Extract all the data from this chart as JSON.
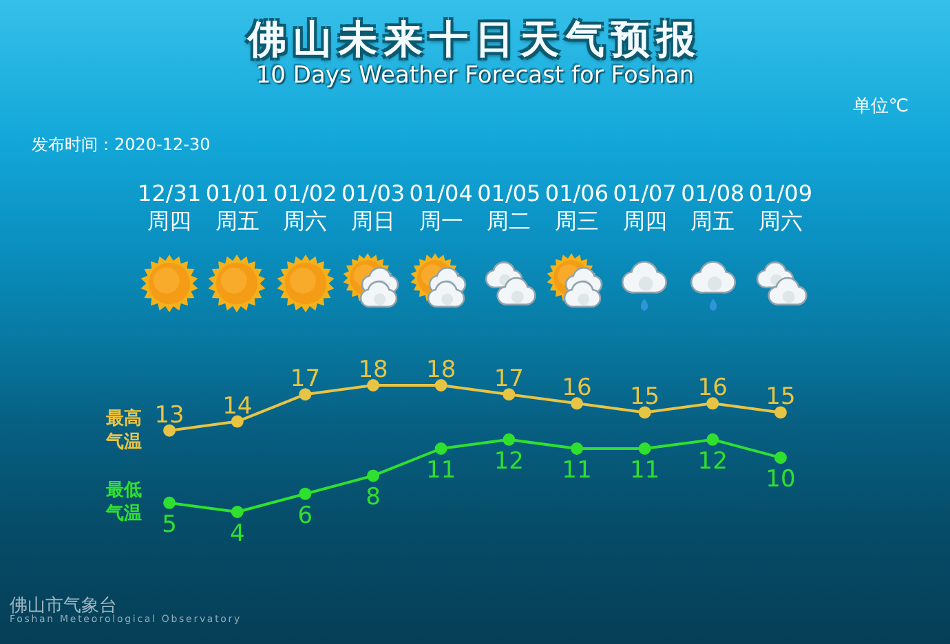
{
  "chart_data": {
    "type": "line",
    "title": "佛山未来十日天气预报",
    "subtitle": "10 Days Weather Forecast for Foshan",
    "annotations": [
      "单位℃",
      "发布时间：2020-12-30",
      "佛山市气象台",
      "Foshan Meteorological Observatory"
    ],
    "categories": [
      "12/31\n周四",
      "01/01\n周五",
      "01/02\n周六",
      "01/03\n周日",
      "01/04\n周一",
      "01/05\n周二",
      "01/06\n周三",
      "01/07\n周四",
      "01/08\n周五",
      "01/09\n周六"
    ],
    "series": [
      {
        "name": "最高气温",
        "color": "#e8c444",
        "values": [
          13,
          14,
          17,
          18,
          18,
          17,
          16,
          15,
          16,
          15
        ]
      },
      {
        "name": "最低气温",
        "color": "#2fe02f",
        "values": [
          5,
          4,
          6,
          8,
          11,
          12,
          11,
          11,
          12,
          10
        ]
      }
    ],
    "data_labels": true,
    "marker": "circle",
    "tick_labels": "x"
  }
}
